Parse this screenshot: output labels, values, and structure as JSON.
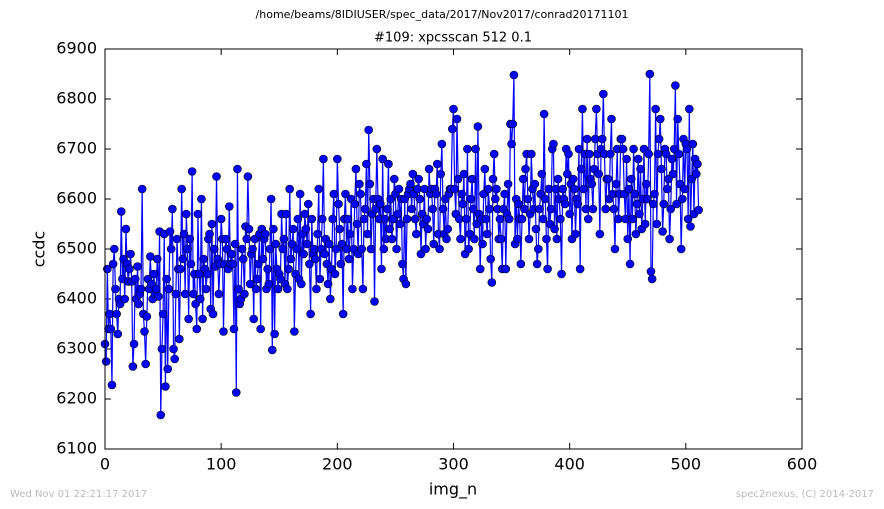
{
  "chart_data": {
    "type": "line",
    "suptitle": "/home/beams/8IDIUSER/spec_data/2017/Nov2017/conrad20171101",
    "title": "#109: xpcsscan 512 0.1",
    "x_label": "img_n",
    "y_label": "ccdc",
    "footer_left": "Wed Nov 01 22:21:17 2017",
    "footer_right": "spec2nexus, (C) 2014-2017",
    "xlim": [
      0,
      600
    ],
    "xticks": [
      0,
      100,
      200,
      300,
      400,
      500,
      600
    ],
    "ylim": [
      6100,
      6900
    ],
    "yticks": [
      6100,
      6200,
      6300,
      6400,
      6500,
      6600,
      6700,
      6800,
      6900
    ],
    "grid": false,
    "x": [
      0,
      1,
      2,
      3,
      4,
      5,
      6,
      7,
      8,
      9,
      10,
      11,
      12,
      13,
      14,
      15,
      16,
      17,
      18,
      19,
      20,
      21,
      22,
      23,
      24,
      25,
      26,
      27,
      28,
      29,
      30,
      31,
      32,
      33,
      34,
      35,
      36,
      37,
      38,
      39,
      40,
      41,
      42,
      43,
      44,
      45,
      46,
      47,
      48,
      49,
      50,
      51,
      52,
      53,
      54,
      55,
      56,
      57,
      58,
      59,
      60,
      61,
      62,
      63,
      64,
      65,
      66,
      67,
      68,
      69,
      70,
      71,
      72,
      73,
      74,
      75,
      76,
      77,
      78,
      79,
      80,
      81,
      82,
      83,
      84,
      85,
      86,
      87,
      88,
      89,
      90,
      91,
      92,
      93,
      94,
      95,
      96,
      97,
      98,
      99,
      100,
      101,
      102,
      103,
      104,
      105,
      106,
      107,
      108,
      109,
      110,
      111,
      112,
      113,
      114,
      115,
      116,
      117,
      118,
      119,
      120,
      121,
      122,
      123,
      124,
      125,
      126,
      127,
      128,
      129,
      130,
      131,
      132,
      133,
      134,
      135,
      136,
      137,
      138,
      139,
      140,
      141,
      142,
      143,
      144,
      145,
      146,
      147,
      148,
      149,
      150,
      151,
      152,
      153,
      154,
      155,
      156,
      157,
      158,
      159,
      160,
      161,
      162,
      163,
      164,
      165,
      166,
      167,
      168,
      169,
      170,
      171,
      172,
      173,
      174,
      175,
      176,
      177,
      178,
      179,
      180,
      181,
      182,
      183,
      184,
      185,
      186,
      187,
      188,
      189,
      190,
      191,
      192,
      193,
      194,
      195,
      196,
      197,
      198,
      199,
      200,
      201,
      202,
      203,
      204,
      205,
      206,
      207,
      208,
      209,
      210,
      211,
      212,
      213,
      214,
      215,
      216,
      217,
      218,
      219,
      220,
      221,
      222,
      223,
      224,
      225,
      226,
      227,
      228,
      229,
      230,
      231,
      232,
      233,
      234,
      235,
      236,
      237,
      238,
      239,
      240,
      241,
      242,
      243,
      244,
      245,
      246,
      247,
      248,
      249,
      250,
      251,
      252,
      253,
      254,
      255,
      256,
      257,
      258,
      259,
      260,
      261,
      262,
      263,
      264,
      265,
      266,
      267,
      268,
      269,
      270,
      271,
      272,
      273,
      274,
      275,
      276,
      277,
      278,
      279,
      280,
      281,
      282,
      283,
      284,
      285,
      286,
      287,
      288,
      289,
      290,
      291,
      292,
      293,
      294,
      295,
      296,
      297,
      298,
      299,
      300,
      301,
      302,
      303,
      304,
      305,
      306,
      307,
      308,
      309,
      310,
      311,
      312,
      313,
      314,
      315,
      316,
      317,
      318,
      319,
      320,
      321,
      322,
      323,
      324,
      325,
      326,
      327,
      328,
      329,
      330,
      331,
      332,
      333,
      334,
      335,
      336,
      337,
      338,
      339,
      340,
      341,
      342,
      343,
      344,
      345,
      346,
      347,
      348,
      349,
      350,
      351,
      352,
      353,
      354,
      355,
      356,
      357,
      358,
      359,
      360,
      361,
      362,
      363,
      364,
      365,
      366,
      367,
      368,
      369,
      370,
      371,
      372,
      373,
      374,
      375,
      376,
      377,
      378,
      379,
      380,
      381,
      382,
      383,
      384,
      385,
      386,
      387,
      388,
      389,
      390,
      391,
      392,
      393,
      394,
      395,
      396,
      397,
      398,
      399,
      400,
      401,
      402,
      403,
      404,
      405,
      406,
      407,
      408,
      409,
      410,
      411,
      412,
      413,
      414,
      415,
      416,
      417,
      418,
      419,
      420,
      421,
      422,
      423,
      424,
      425,
      426,
      427,
      428,
      429,
      430,
      431,
      432,
      433,
      434,
      435,
      436,
      437,
      438,
      439,
      440,
      441,
      442,
      443,
      444,
      445,
      446,
      447,
      448,
      449,
      450,
      451,
      452,
      453,
      454,
      455,
      456,
      457,
      458,
      459,
      460,
      461,
      462,
      463,
      464,
      465,
      466,
      467,
      468,
      469,
      470,
      471,
      472,
      473,
      474,
      475,
      476,
      477,
      478,
      479,
      480,
      481,
      482,
      483,
      484,
      485,
      486,
      487,
      488,
      489,
      490,
      491,
      492,
      493,
      494,
      495,
      496,
      497,
      498,
      499,
      500,
      501,
      502,
      503,
      504,
      505,
      506,
      507,
      508,
      509,
      510,
      511
    ],
    "series": [
      {
        "name": "ccdc",
        "color": "#0000ff",
        "values": [
          6310,
          6275,
          6460,
          6340,
          6370,
          6340,
          6228,
          6470,
          6500,
          6420,
          6370,
          6330,
          6400,
          6390,
          6575,
          6440,
          6480,
          6400,
          6540,
          6470,
          6435,
          6460,
          6490,
          6435,
          6265,
          6310,
          6440,
          6400,
          6465,
          6390,
          6410,
          6420,
          6620,
          6370,
          6335,
          6270,
          6365,
          6440,
          6420,
          6485,
          6430,
          6400,
          6450,
          6410,
          6420,
          6480,
          6405,
          6535,
          6168,
          6300,
          6370,
          6530,
          6225,
          6440,
          6260,
          6420,
          6535,
          6500,
          6580,
          6300,
          6280,
          6410,
          6520,
          6460,
          6320,
          6460,
          6620,
          6480,
          6530,
          6410,
          6570,
          6500,
          6360,
          6520,
          6470,
          6655,
          6410,
          6450,
          6390,
          6340,
          6570,
          6450,
          6400,
          6600,
          6360,
          6480,
          6460,
          6420,
          6450,
          6520,
          6530,
          6380,
          6550,
          6370,
          6500,
          6465,
          6645,
          6480,
          6410,
          6470,
          6560,
          6520,
          6335,
          6470,
          6520,
          6500,
          6460,
          6585,
          6470,
          6490,
          6470,
          6340,
          6510,
          6213,
          6660,
          6420,
          6390,
          6400,
          6500,
          6480,
          6410,
          6545,
          6520,
          6645,
          6540,
          6430,
          6490,
          6500,
          6360,
          6520,
          6420,
          6440,
          6470,
          6530,
          6340,
          6540,
          6480,
          6520,
          6530,
          6420,
          6460,
          6430,
          6500,
          6600,
          6298,
          6540,
          6330,
          6510,
          6460,
          6420,
          6450,
          6440,
          6570,
          6500,
          6520,
          6430,
          6570,
          6420,
          6460,
          6620,
          6480,
          6510,
          6540,
          6335,
          6450,
          6500,
          6560,
          6440,
          6610,
          6430,
          6530,
          6490,
          6570,
          6540,
          6510,
          6590,
          6470,
          6370,
          6560,
          6490,
          6500,
          6480,
          6420,
          6530,
          6620,
          6440,
          6500,
          6560,
          6680,
          6490,
          6520,
          6470,
          6430,
          6510,
          6400,
          6460,
          6560,
          6610,
          6450,
          6500,
          6680,
          6590,
          6540,
          6470,
          6510,
          6370,
          6560,
          6610,
          6500,
          6560,
          6480,
          6530,
          6600,
          6420,
          6500,
          6590,
          6660,
          6550,
          6490,
          6630,
          6610,
          6500,
          6420,
          6560,
          6580,
          6670,
          6530,
          6738,
          6630,
          6500,
          6570,
          6600,
          6395,
          6580,
          6700,
          6600,
          6560,
          6590,
          6460,
          6680,
          6500,
          6560,
          6520,
          6580,
          6670,
          6540,
          6600,
          6520,
          6560,
          6640,
          6610,
          6500,
          6570,
          6620,
          6550,
          6600,
          6470,
          6440,
          6600,
          6430,
          6560,
          6610,
          6620,
          6630,
          6580,
          6650,
          6610,
          6560,
          6530,
          6620,
          6640,
          6600,
          6490,
          6570,
          6550,
          6620,
          6500,
          6560,
          6540,
          6660,
          6610,
          6620,
          6580,
          6510,
          6620,
          6610,
          6670,
          6530,
          6500,
          6650,
          6710,
          6580,
          6530,
          6600,
          6520,
          6540,
          6610,
          6620,
          6620,
          6740,
          6780,
          6620,
          6570,
          6760,
          6640,
          6560,
          6520,
          6610,
          6590,
          6650,
          6490,
          6560,
          6700,
          6500,
          6530,
          6600,
          6640,
          6580,
          6520,
          6700,
          6550,
          6745,
          6570,
          6460,
          6560,
          6510,
          6610,
          6660,
          6560,
          6530,
          6620,
          6580,
          6480,
          6433,
          6640,
          6690,
          6600,
          6620,
          6580,
          6520,
          6560,
          6520,
          6460,
          6580,
          6610,
          6460,
          6570,
          6630,
          6560,
          6750,
          6710,
          6750,
          6848,
          6510,
          6600,
          6520,
          6590,
          6560,
          6470,
          6560,
          6640,
          6580,
          6660,
          6690,
          6600,
          6520,
          6570,
          6690,
          6620,
          6580,
          6630,
          6540,
          6470,
          6500,
          6580,
          6610,
          6650,
          6560,
          6770,
          6600,
          6520,
          6460,
          6620,
          6550,
          6580,
          6700,
          6710,
          6540,
          6620,
          6520,
          6640,
          6600,
          6560,
          6450,
          6620,
          6600,
          6590,
          6700,
          6650,
          6690,
          6570,
          6630,
          6520,
          6640,
          6620,
          6530,
          6600,
          6590,
          6700,
          6460,
          6660,
          6780,
          6620,
          6690,
          6580,
          6720,
          6560,
          6690,
          6640,
          6630,
          6580,
          6660,
          6720,
          6780,
          6690,
          6650,
          6530,
          6700,
          6720,
          6810,
          6690,
          6580,
          6640,
          6640,
          6600,
          6690,
          6760,
          6610,
          6580,
          6500,
          6630,
          6700,
          6560,
          6610,
          6720,
          6720,
          6700,
          6610,
          6560,
          6680,
          6520,
          6620,
          6470,
          6640,
          6560,
          6700,
          6610,
          6530,
          6590,
          6680,
          6570,
          6660,
          6540,
          6600,
          6700,
          6550,
          6630,
          6600,
          6690,
          6850,
          6455,
          6440,
          6590,
          6610,
          6780,
          6550,
          6690,
          6720,
          6760,
          6660,
          6535,
          6590,
          6700,
          6690,
          6620,
          6640,
          6520,
          6580,
          6680,
          6650,
          6700,
          6827,
          6590,
          6760,
          6690,
          6630,
          6500,
          6600,
          6720,
          6620,
          6710,
          6700,
          6560,
          6780,
          6545,
          6640,
          6710,
          6570,
          6680,
          6650,
          6670,
          6578
        ]
      }
    ]
  }
}
